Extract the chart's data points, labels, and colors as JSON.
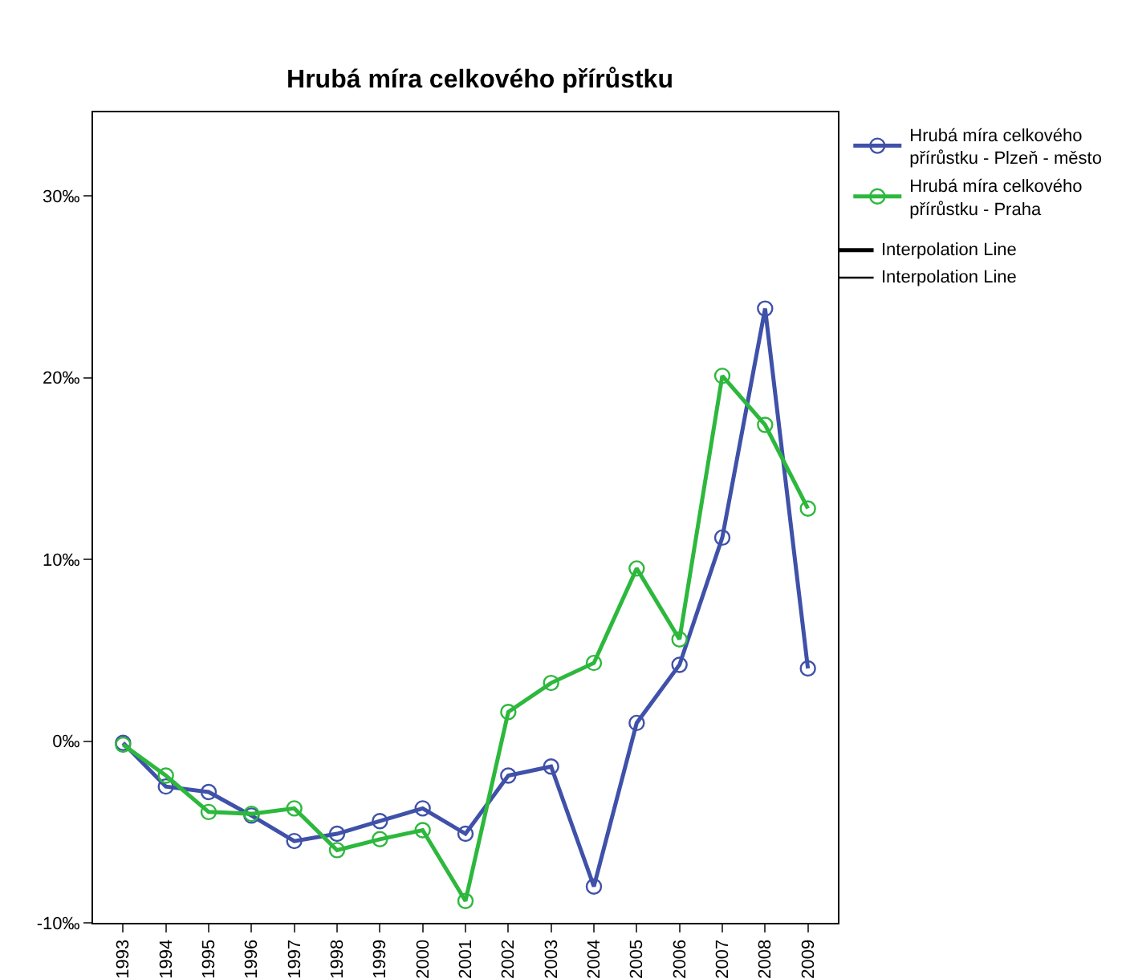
{
  "chart_data": {
    "type": "line",
    "title": "Hrubá míra celkového přírůstku",
    "categories": [
      "1993",
      "1994",
      "1995",
      "1996",
      "1997",
      "1998",
      "1999",
      "2000",
      "2001",
      "2002",
      "2003",
      "2004",
      "2005",
      "2006",
      "2007",
      "2008",
      "2009"
    ],
    "series": [
      {
        "name": "Hrubá míra celkového přírůstku - Plzeň - město",
        "color": "#3f51a8",
        "values": [
          -0.1,
          -2.5,
          -2.8,
          -4.1,
          -5.5,
          -5.1,
          -4.4,
          -3.7,
          -5.1,
          -1.9,
          -1.4,
          -8.0,
          1.0,
          4.2,
          11.2,
          23.8,
          4.0
        ]
      },
      {
        "name": "Hrubá míra celkového přírůstku - Praha",
        "color": "#2db83d",
        "values": [
          -0.2,
          -1.9,
          -3.9,
          -4.0,
          -3.7,
          -6.0,
          -5.4,
          -4.9,
          -8.8,
          1.6,
          3.2,
          4.3,
          9.5,
          5.6,
          20.1,
          17.4,
          12.8
        ]
      }
    ],
    "annotations": [
      "Interpolation Line",
      "Interpolation Line"
    ],
    "ylim": [
      -10,
      34.6
    ],
    "yticks": [
      {
        "value": -10,
        "label": "-10‰"
      },
      {
        "value": 0,
        "label": "0‰"
      },
      {
        "value": 10,
        "label": "10‰"
      },
      {
        "value": 20,
        "label": "20‰"
      },
      {
        "value": 30,
        "label": "30‰"
      }
    ],
    "marker": "circle",
    "line_style": "solid",
    "grid": false,
    "legend": "top right"
  }
}
